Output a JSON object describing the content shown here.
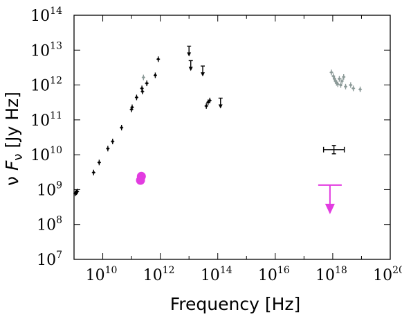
{
  "chart_data": {
    "type": "scatter",
    "title": "",
    "xlabel": "Frequency  [Hz]",
    "ylabel_parts": {
      "nu": "ν",
      "F": "F",
      "sub": "ν",
      "units": " [Jy Hz]"
    },
    "xscale": "log",
    "yscale": "log",
    "xlim": [
      1000000000.0,
      1e+20
    ],
    "ylim": [
      10000000.0,
      100000000000000.0
    ],
    "grid": false,
    "x_major_exponents": [
      10,
      12,
      14,
      16,
      18,
      20
    ],
    "y_major_exponents": [
      7,
      8,
      9,
      10,
      11,
      12,
      13,
      14
    ],
    "tick_base": "10",
    "colors": {
      "black": "#000000",
      "gray": "#8c9a98",
      "magenta": "#e23ce0"
    },
    "series": [
      {
        "style": "black-errorbar",
        "points": [
          {
            "x": 1100000000.0,
            "y": 780000000.0
          },
          {
            "x": 1200000000.0,
            "y": 840000000.0
          },
          {
            "x": 1300000000.0,
            "y": 880000000.0
          },
          {
            "x": 4800000000.0,
            "y": 3100000000.0
          },
          {
            "x": 7500000000.0,
            "y": 6000000000.0
          },
          {
            "x": 15000000000.0,
            "y": 15000000000.0
          },
          {
            "x": 22000000000.0,
            "y": 24000000000.0
          },
          {
            "x": 45000000000.0,
            "y": 60000000000.0
          },
          {
            "x": 100000000000.0,
            "y": 200000000000.0
          },
          {
            "x": 105000000000.0,
            "y": 230000000000.0
          },
          {
            "x": 150000000000.0,
            "y": 440000000000.0
          },
          {
            "x": 230000000000.0,
            "y": 800000000000.0
          },
          {
            "x": 240000000000.0,
            "y": 650000000000.0
          },
          {
            "x": 340000000000.0,
            "y": 1120000000000.0
          },
          {
            "x": 670000000000.0,
            "y": 1900000000000.0
          },
          {
            "x": 850000000000.0,
            "y": 5500000000000.0
          },
          {
            "x": 40000000000000.0,
            "y": 250000000000.0
          },
          {
            "x": 46000000000000.0,
            "y": 320000000000.0
          },
          {
            "x": 53000000000000.0,
            "y": 360000000000.0
          }
        ]
      },
      {
        "style": "gray-errorbar",
        "points": [
          {
            "x": 260000000000.0,
            "y": 1650000000000.0
          },
          {
            "x": 9e+17,
            "y": 2300000000000.0
          },
          {
            "x": 1.05e+18,
            "y": 1800000000000.0
          },
          {
            "x": 1.15e+18,
            "y": 1500000000000.0
          },
          {
            "x": 1.25e+18,
            "y": 1300000000000.0
          },
          {
            "x": 1.35e+18,
            "y": 1150000000000.0
          },
          {
            "x": 1.5e+18,
            "y": 1050000000000.0
          },
          {
            "x": 1.7e+18,
            "y": 1500000000000.0
          },
          {
            "x": 1.9e+18,
            "y": 1000000000000.0
          },
          {
            "x": 2.1e+18,
            "y": 1300000000000.0
          },
          {
            "x": 2.4e+18,
            "y": 1700000000000.0
          },
          {
            "x": 2.8e+18,
            "y": 900000000000.0
          },
          {
            "x": 4.2e+18,
            "y": 1000000000000.0
          },
          {
            "x": 5.2e+18,
            "y": 800000000000.0
          },
          {
            "x": 9e+18,
            "y": 750000000000.0
          }
        ]
      },
      {
        "style": "black-upper-limit",
        "points": [
          {
            "x": 10000000000000.0,
            "y": 13000000000000.0
          },
          {
            "x": 11500000000000.0,
            "y": 5000000000000.0
          },
          {
            "x": 30000000000000.0,
            "y": 3500000000000.0
          },
          {
            "x": 125000000000000.0,
            "y": 420000000000.0
          }
        ]
      },
      {
        "style": "black-xray-point",
        "points": [
          {
            "x": 1.1e+18,
            "y": 14000000000.0
          }
        ]
      },
      {
        "style": "magenta-dot",
        "points": [
          {
            "x": 220000000000.0,
            "y": 2400000000.0
          },
          {
            "x": 205000000000.0,
            "y": 1850000000.0
          }
        ]
      },
      {
        "style": "magenta-upper-limit",
        "points": [
          {
            "x": 8e+17,
            "y": 1350000000.0
          }
        ]
      }
    ]
  }
}
